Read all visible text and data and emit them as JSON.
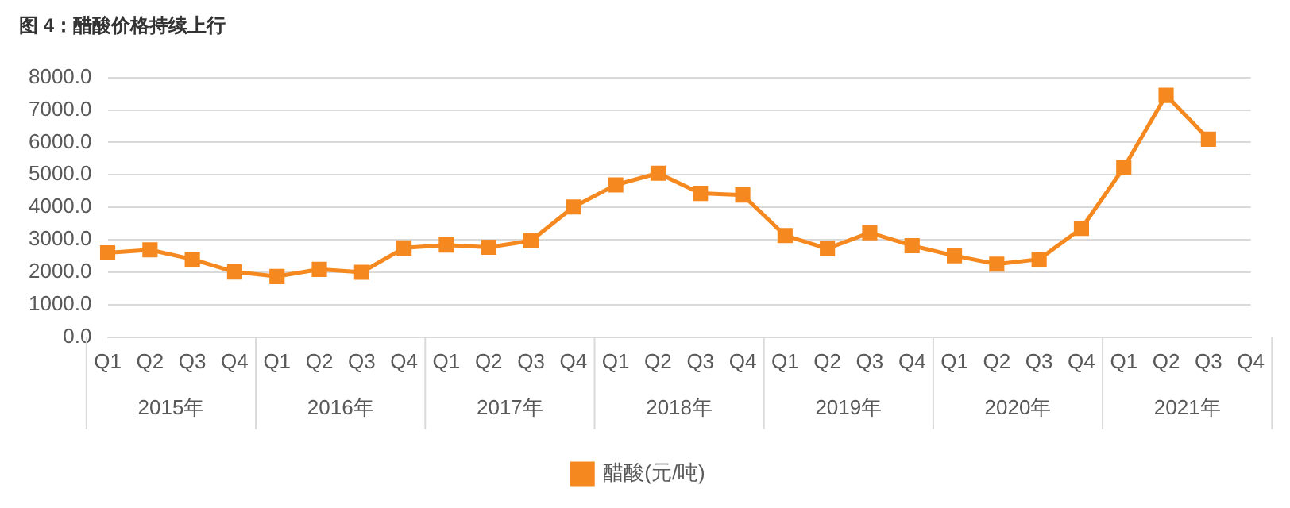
{
  "chart_data": {
    "type": "line",
    "title": "图 4：醋酸价格持续上行",
    "categories": [
      "Q1",
      "Q2",
      "Q3",
      "Q4",
      "Q1",
      "Q2",
      "Q3",
      "Q4",
      "Q1",
      "Q2",
      "Q3",
      "Q4",
      "Q1",
      "Q2",
      "Q3",
      "Q4",
      "Q1",
      "Q2",
      "Q3",
      "Q4",
      "Q1",
      "Q2",
      "Q3",
      "Q4",
      "Q1",
      "Q2",
      "Q3",
      "Q4"
    ],
    "series": [
      {
        "name": "醋酸(元/吨)",
        "color": "#f5891f",
        "values": [
          2600,
          2690,
          2400,
          2010,
          1870,
          2090,
          2000,
          2750,
          2840,
          2770,
          2970,
          4010,
          4690,
          5050,
          4430,
          4380,
          3130,
          2730,
          3220,
          2820,
          2510,
          2250,
          2400,
          3350,
          5220,
          7450,
          6100,
          null
        ]
      }
    ],
    "annotations": [
      "2015年",
      "2016年",
      "2017年",
      "2018年",
      "2019年",
      "2020年",
      "2021年"
    ],
    "ylim": [
      0,
      8000
    ],
    "yticks": [
      {
        "value": 0,
        "label": "0.0"
      },
      {
        "value": 1000,
        "label": "1000.0"
      },
      {
        "value": 2000,
        "label": "2000.0"
      },
      {
        "value": 3000,
        "label": "3000.0"
      },
      {
        "value": 4000,
        "label": "4000.0"
      },
      {
        "value": 5000,
        "label": "5000.0"
      },
      {
        "value": 6000,
        "label": "6000.0"
      },
      {
        "value": 7000,
        "label": "7000.0"
      },
      {
        "value": 8000,
        "label": "8000.0"
      }
    ],
    "grid": "y",
    "legend": "bottom",
    "marker": "square",
    "line_style": "solid"
  }
}
